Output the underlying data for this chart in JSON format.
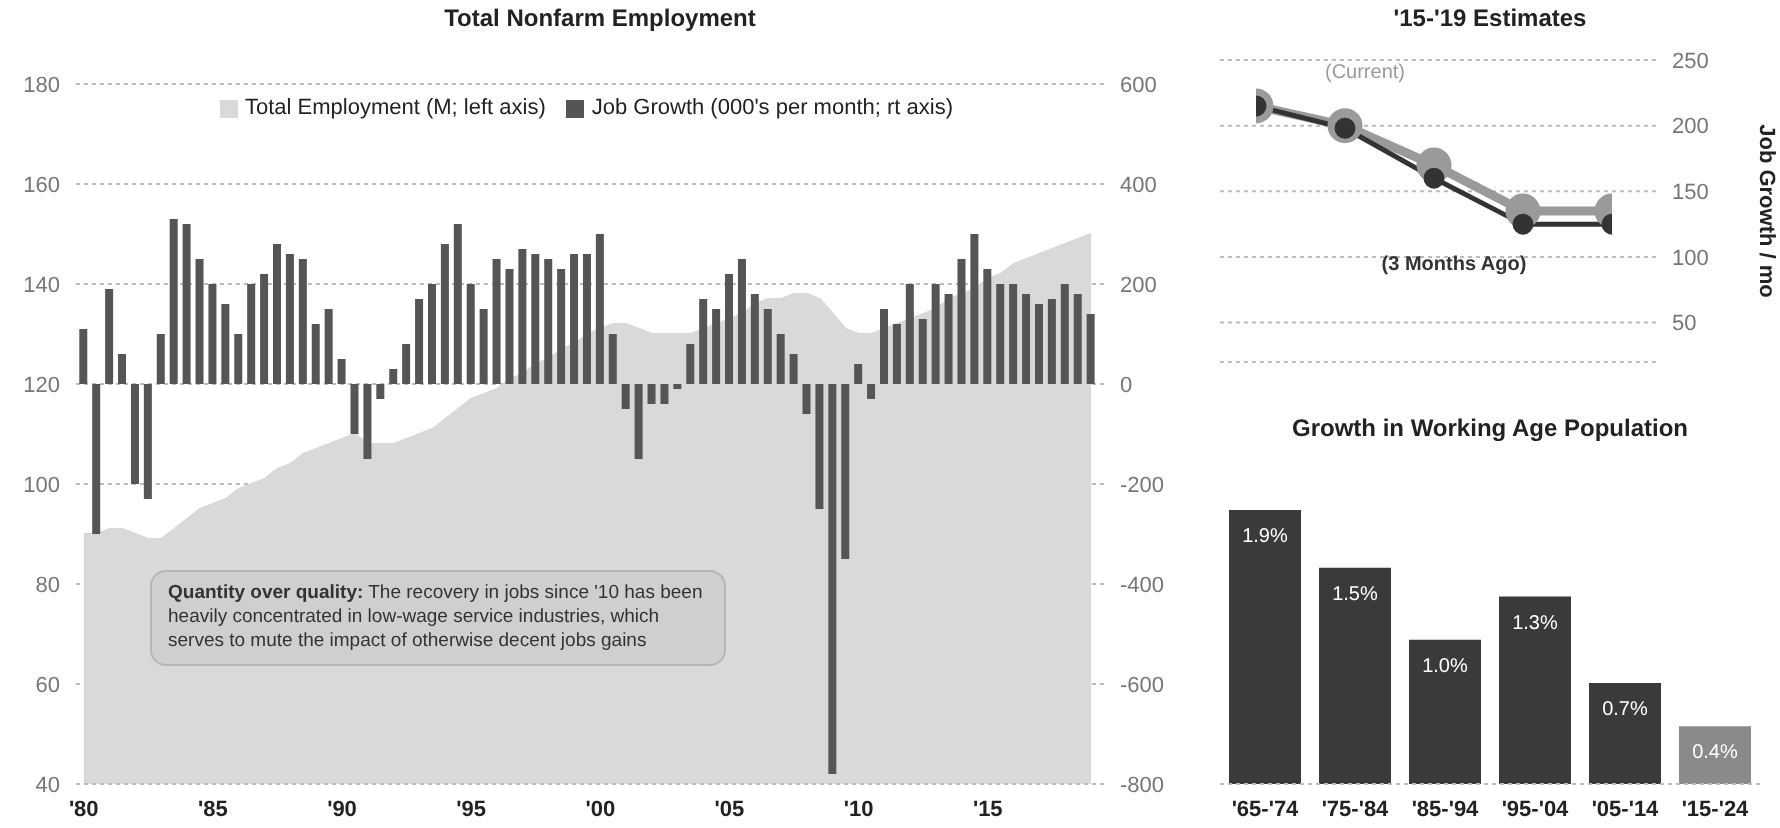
{
  "chart_data": [
    {
      "type": "bar",
      "title": "Total Nonfarm Employment",
      "x": [
        1980,
        1980.5,
        1981,
        1981.5,
        1982,
        1982.5,
        1983,
        1983.5,
        1984,
        1984.5,
        1985,
        1985.5,
        1986,
        1986.5,
        1987,
        1987.5,
        1988,
        1988.5,
        1989,
        1989.5,
        1990,
        1990.5,
        1991,
        1991.5,
        1992,
        1992.5,
        1993,
        1993.5,
        1994,
        1994.5,
        1995,
        1995.5,
        1996,
        1996.5,
        1997,
        1997.5,
        1998,
        1998.5,
        1999,
        1999.5,
        2000,
        2000.5,
        2001,
        2001.5,
        2002,
        2002.5,
        2003,
        2003.5,
        2004,
        2004.5,
        2005,
        2005.5,
        2006,
        2006.5,
        2007,
        2007.5,
        2008,
        2008.5,
        2009,
        2009.5,
        2010,
        2010.5,
        2011,
        2011.5,
        2012,
        2012.5,
        2013,
        2013.5,
        2014,
        2014.5,
        2015,
        2015.5,
        2016,
        2016.5,
        2017,
        2017.5,
        2018,
        2018.5,
        2019
      ],
      "series": [
        {
          "name": "Total Employment (M; left axis)",
          "type": "area",
          "color": "#d9d9d9",
          "values": [
            90,
            90,
            91,
            91,
            90,
            89,
            89,
            91,
            93,
            95,
            96,
            97,
            99,
            100,
            101,
            103,
            104,
            106,
            107,
            108,
            109,
            110,
            108,
            108,
            108,
            109,
            110,
            111,
            113,
            115,
            117,
            118,
            119,
            121,
            122,
            124,
            125,
            127,
            128,
            130,
            131,
            132,
            132,
            131,
            130,
            130,
            130,
            130,
            131,
            132,
            133,
            134,
            136,
            137,
            137,
            138,
            138,
            137,
            134,
            131,
            130,
            130,
            131,
            132,
            133,
            134,
            135,
            137,
            138,
            139,
            141,
            142,
            144,
            145,
            146,
            147,
            148,
            149,
            150
          ]
        },
        {
          "name": "Job Growth (000's per month; rt axis)",
          "axis": "y2",
          "color": "#555555",
          "values": [
            110,
            -300,
            190,
            60,
            -200,
            -230,
            100,
            330,
            320,
            250,
            200,
            160,
            100,
            200,
            220,
            280,
            260,
            250,
            120,
            150,
            50,
            -100,
            -150,
            -30,
            30,
            80,
            170,
            200,
            280,
            320,
            200,
            150,
            250,
            230,
            270,
            260,
            250,
            230,
            260,
            260,
            300,
            100,
            -50,
            -150,
            -40,
            -40,
            -10,
            80,
            170,
            150,
            220,
            250,
            180,
            150,
            100,
            60,
            -60,
            -250,
            -780,
            -350,
            40,
            -30,
            150,
            120,
            200,
            130,
            200,
            180,
            250,
            300,
            230,
            200,
            200,
            180,
            160,
            170,
            200,
            180,
            140
          ]
        }
      ],
      "xlim": [
        1979.7,
        2019.5
      ],
      "xticks": [
        {
          "value": 1980,
          "label": "'80"
        },
        {
          "value": 1985,
          "label": "'85"
        },
        {
          "value": 1990,
          "label": "'90"
        },
        {
          "value": 1995,
          "label": "'95"
        },
        {
          "value": 2000,
          "label": "'00"
        },
        {
          "value": 2005,
          "label": "'05"
        },
        {
          "value": 2010,
          "label": "'10"
        },
        {
          "value": 2015,
          "label": "'15"
        }
      ],
      "ylim": [
        40,
        180
      ],
      "yticks": [
        40,
        60,
        80,
        100,
        120,
        140,
        160,
        180
      ],
      "y2lim": [
        -800,
        600
      ],
      "y2ticks": [
        -800,
        -600,
        -400,
        -200,
        0,
        200,
        400,
        600
      ],
      "grid": "y",
      "legend": "top",
      "annotations": [
        "Quantity over quality: The recovery in jobs since '10 has been heavily concentrated in low-wage service industries, which serves to mute the impact of otherwise decent jobs gains"
      ]
    },
    {
      "type": "line",
      "title": "'15-'19 Estimates",
      "ylabel": "Job Growth / mo",
      "categories": [
        null,
        null,
        null,
        null,
        null
      ],
      "series": [
        {
          "name": "(Current)",
          "color": "#9a9a9a",
          "values": [
            215,
            200,
            170,
            135,
            135
          ]
        },
        {
          "name": "(3 Months Ago)",
          "color": "#333333",
          "values": [
            215,
            198,
            160,
            125,
            125
          ]
        }
      ],
      "ylim": [
        20,
        250
      ],
      "yticks": [
        50,
        100,
        150,
        200,
        250
      ],
      "grid": "y",
      "marker": "circle",
      "line_style": "solid"
    },
    {
      "type": "bar",
      "title": "Growth in Working Age Population",
      "categories": [
        "'65-'74",
        "'75-'84",
        "'85-'94",
        "'95-'04",
        "'05-'14",
        "'15-'24"
      ],
      "values": [
        1.9,
        1.5,
        1.0,
        1.3,
        0.7,
        0.4
      ],
      "colors": [
        "#3a3a3a",
        "#3a3a3a",
        "#3a3a3a",
        "#3a3a3a",
        "#3a3a3a",
        "#8a8a8a"
      ],
      "value_labels": [
        "1.9%",
        "1.5%",
        "1.0%",
        "1.3%",
        "0.7%",
        "0.4%"
      ],
      "tick_labels": "x"
    }
  ]
}
